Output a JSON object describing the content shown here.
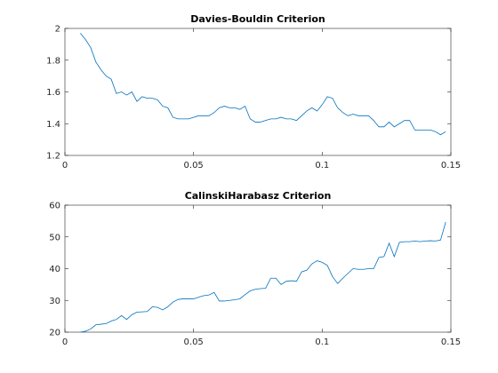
{
  "chart_data": [
    {
      "type": "line",
      "title": "Davies-Bouldin Criterion",
      "x": [
        0.006,
        0.008,
        0.01,
        0.012,
        0.014,
        0.016,
        0.018,
        0.02,
        0.022,
        0.024,
        0.026,
        0.028,
        0.03,
        0.032,
        0.034,
        0.036,
        0.038,
        0.04,
        0.042,
        0.044,
        0.046,
        0.048,
        0.05,
        0.052,
        0.054,
        0.056,
        0.058,
        0.06,
        0.062,
        0.064,
        0.066,
        0.068,
        0.07,
        0.072,
        0.074,
        0.076,
        0.078,
        0.08,
        0.082,
        0.084,
        0.086,
        0.088,
        0.09,
        0.092,
        0.094,
        0.096,
        0.098,
        0.1,
        0.102,
        0.104,
        0.106,
        0.108,
        0.11,
        0.112,
        0.114,
        0.116,
        0.118,
        0.12,
        0.122,
        0.124,
        0.126,
        0.128,
        0.13,
        0.132,
        0.134,
        0.136,
        0.138,
        0.14,
        0.142,
        0.144,
        0.146,
        0.148
      ],
      "series": [
        {
          "color": "#0072bd",
          "values": [
            1.97,
            1.93,
            1.88,
            1.79,
            1.74,
            1.7,
            1.68,
            1.59,
            1.6,
            1.58,
            1.6,
            1.54,
            1.57,
            1.56,
            1.56,
            1.55,
            1.51,
            1.5,
            1.44,
            1.43,
            1.43,
            1.43,
            1.44,
            1.45,
            1.45,
            1.45,
            1.47,
            1.5,
            1.51,
            1.5,
            1.5,
            1.49,
            1.51,
            1.43,
            1.41,
            1.41,
            1.42,
            1.43,
            1.43,
            1.44,
            1.43,
            1.43,
            1.42,
            1.45,
            1.48,
            1.5,
            1.48,
            1.52,
            1.57,
            1.56,
            1.5,
            1.47,
            1.45,
            1.46,
            1.45,
            1.45,
            1.45,
            1.42,
            1.38,
            1.38,
            1.41,
            1.38,
            1.4,
            1.42,
            1.42,
            1.36,
            1.36,
            1.36,
            1.36,
            1.35,
            1.33,
            1.35
          ]
        }
      ],
      "xlim": [
        0,
        0.15
      ],
      "xticks": [
        0,
        0.05,
        0.1,
        0.15
      ],
      "ylim": [
        1.2,
        2
      ],
      "yticks": [
        1.2,
        1.4,
        1.6,
        1.8,
        2
      ]
    },
    {
      "type": "line",
      "title": "CalinskiHarabasz Criterion",
      "x": [
        0.006,
        0.008,
        0.01,
        0.012,
        0.014,
        0.016,
        0.018,
        0.02,
        0.022,
        0.024,
        0.026,
        0.028,
        0.03,
        0.032,
        0.034,
        0.036,
        0.038,
        0.04,
        0.042,
        0.044,
        0.046,
        0.048,
        0.05,
        0.052,
        0.054,
        0.056,
        0.058,
        0.06,
        0.062,
        0.064,
        0.066,
        0.068,
        0.07,
        0.072,
        0.074,
        0.076,
        0.078,
        0.08,
        0.082,
        0.084,
        0.086,
        0.088,
        0.09,
        0.092,
        0.094,
        0.096,
        0.098,
        0.1,
        0.102,
        0.104,
        0.106,
        0.108,
        0.11,
        0.112,
        0.114,
        0.116,
        0.118,
        0.12,
        0.122,
        0.124,
        0.126,
        0.128,
        0.13,
        0.132,
        0.134,
        0.136,
        0.138,
        0.14,
        0.142,
        0.144,
        0.146,
        0.148
      ],
      "series": [
        {
          "color": "#0072bd",
          "values": [
            20,
            20.3,
            21,
            22.3,
            22.5,
            22.7,
            23.5,
            24,
            25.2,
            24,
            25.5,
            26.3,
            26.4,
            26.5,
            28,
            27.8,
            27,
            28,
            29.5,
            30.3,
            30.5,
            30.5,
            30.5,
            31,
            31.5,
            31.7,
            32.5,
            29.8,
            29.8,
            30,
            30.2,
            30.5,
            31.8,
            33,
            33.5,
            33.7,
            33.8,
            37,
            37,
            35,
            36,
            36.2,
            36,
            39,
            39.5,
            41.5,
            42.5,
            42,
            41,
            37.5,
            35.3,
            37,
            38.5,
            40,
            39.8,
            39.8,
            40,
            40,
            43.5,
            43.8,
            48,
            43.8,
            48.3,
            48.5,
            48.5,
            48.7,
            48.5,
            48.7,
            48.8,
            48.7,
            49,
            54.7
          ]
        }
      ],
      "xlim": [
        0,
        0.15
      ],
      "xticks": [
        0,
        0.05,
        0.1,
        0.15
      ],
      "ylim": [
        20,
        60
      ],
      "yticks": [
        20,
        30,
        40,
        50,
        60
      ]
    }
  ]
}
